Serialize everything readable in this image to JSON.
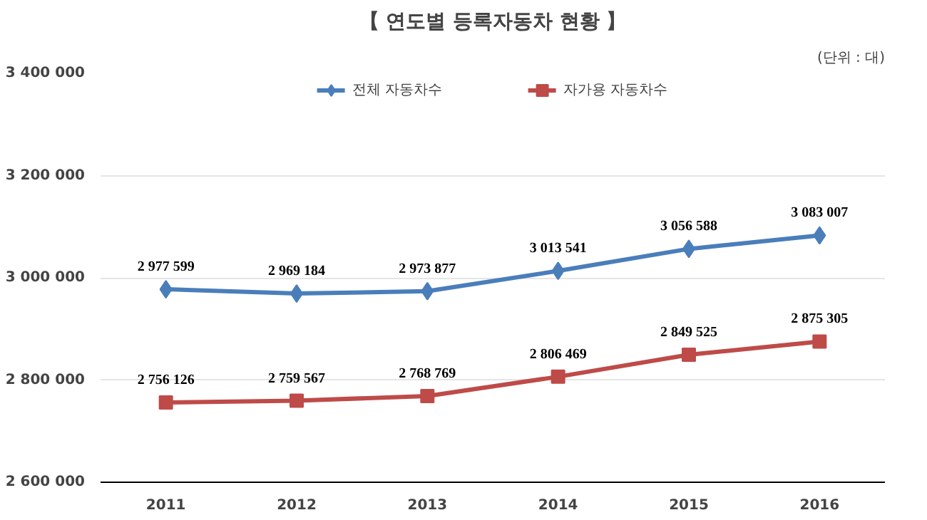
{
  "chart_data": {
    "type": "line",
    "title": "【 연도별 등록자동차 현황 】",
    "annotations": [
      "(단위 : 대)"
    ],
    "categories": [
      "2011",
      "2012",
      "2013",
      "2014",
      "2015",
      "2016"
    ],
    "ylim": [
      2600000,
      3400000
    ],
    "yticks": [
      {
        "value": 2600000,
        "label": "2 600 000"
      },
      {
        "value": 2800000,
        "label": "2 800 000"
      },
      {
        "value": 3000000,
        "label": "3 000 000"
      },
      {
        "value": 3200000,
        "label": "3 200 000"
      },
      {
        "value": 3400000,
        "label": "3 400 000"
      }
    ],
    "grid": "y",
    "legend": "top",
    "line_style": "solid",
    "series": [
      {
        "name": "전체 자동차수",
        "color": "#4a7ebb",
        "marker": "diamond",
        "values": [
          2977599,
          2969184,
          2973877,
          3013541,
          3056588,
          3083007
        ],
        "value_labels": [
          "2 977 599",
          "2 969 184",
          "2 973 877",
          "3 013 541",
          "3 056 588",
          "3 083 007"
        ]
      },
      {
        "name": "자가용 자동차수",
        "color": "#be4b48",
        "marker": "square",
        "values": [
          2756126,
          2759567,
          2768769,
          2806469,
          2849525,
          2875305
        ],
        "value_labels": [
          "2 756 126",
          "2 759 567",
          "2 768 769",
          "2 806 469",
          "2 849 525",
          "2 875 305"
        ]
      }
    ]
  }
}
